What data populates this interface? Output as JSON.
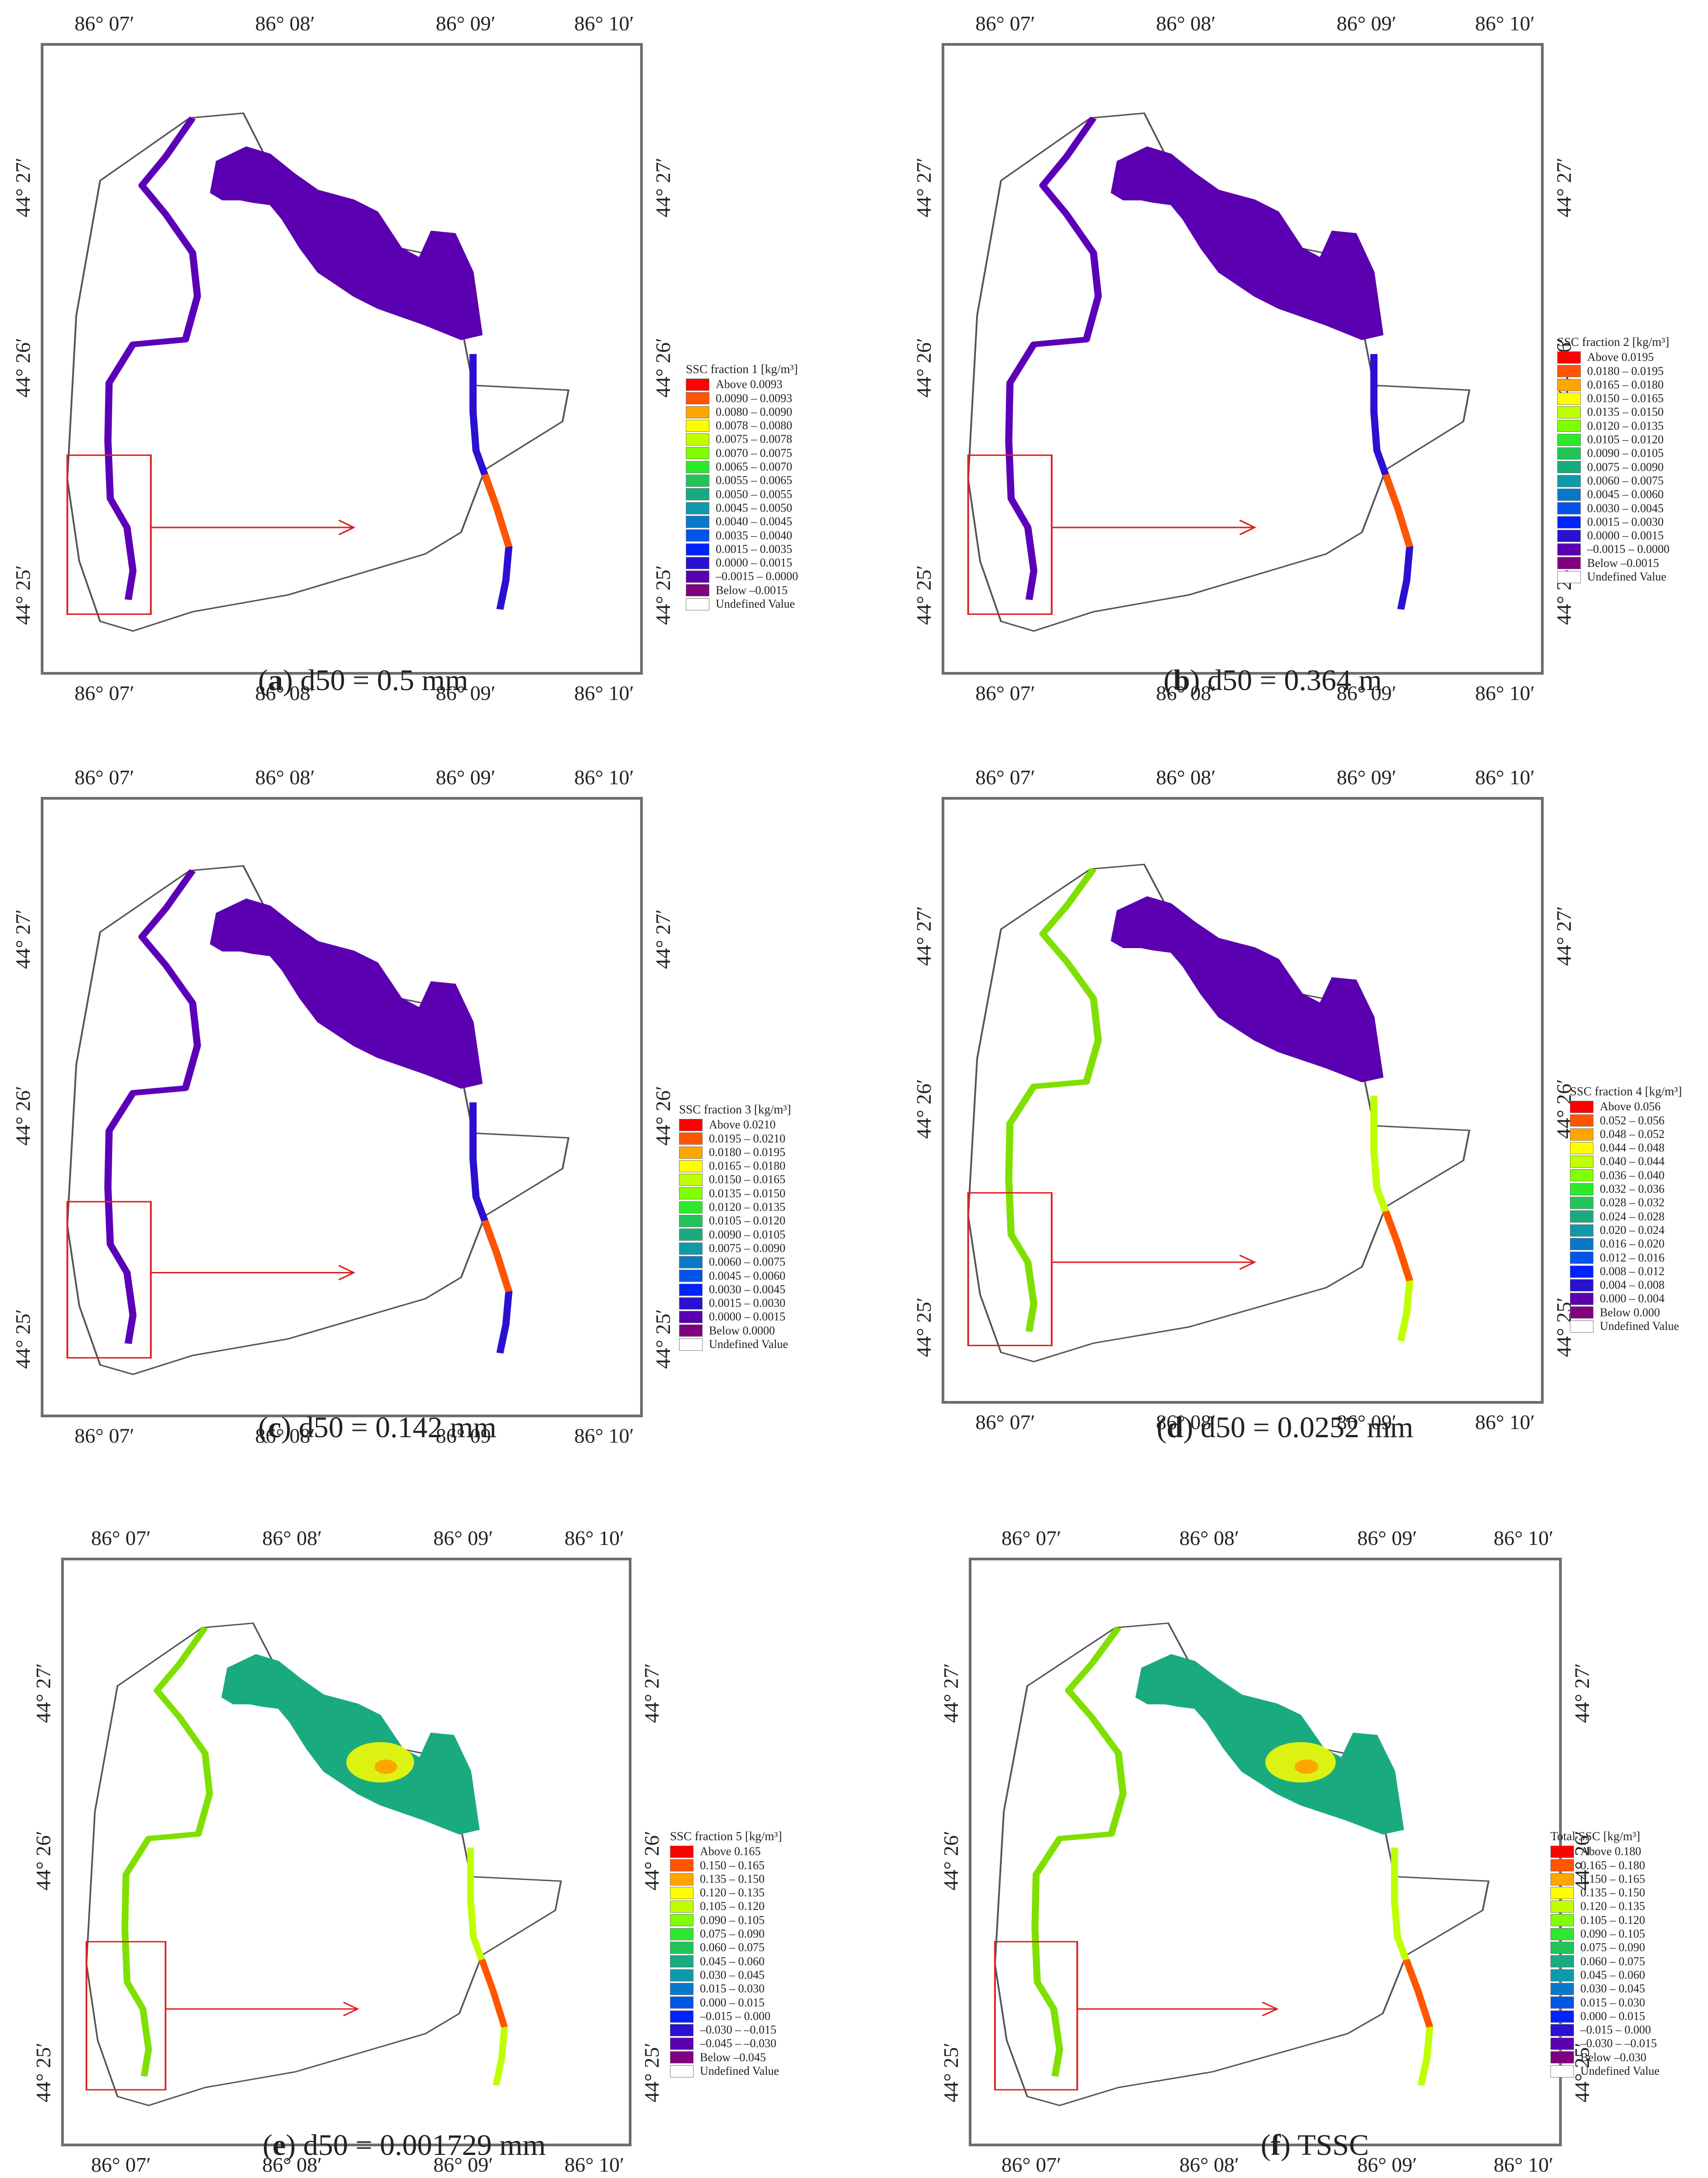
{
  "lon_labels": [
    "86° 07′",
    "86° 08′",
    "86° 09′",
    "86° 10′"
  ],
  "lat_labels": [
    "44° 25′",
    "44° 26′",
    "44° 27′"
  ],
  "undefined_label": "Undefined Value",
  "colors": {
    "boundary": "#555555",
    "highlight_box": "#e02020",
    "river_low": "#5b00b8",
    "lake_low": "#5a00b0"
  },
  "panels": [
    {
      "letter": "a",
      "caption": ") d50 = 0.5 mm",
      "legend_title": "SSC fraction 1 [kg/m³]",
      "legend": [
        {
          "label": "Above     0.0093",
          "color": "#ff0000"
        },
        {
          "label": "0.0090  –  0.0093",
          "color": "#ff5500"
        },
        {
          "label": "0.0080  –  0.0090",
          "color": "#ffa500"
        },
        {
          "label": "0.0078  –  0.0080",
          "color": "#ffff00"
        },
        {
          "label": "0.0075  –  0.0078",
          "color": "#bfff00"
        },
        {
          "label": "0.0070  –  0.0075",
          "color": "#80ff00"
        },
        {
          "label": "0.0065  –  0.0070",
          "color": "#2ee82e"
        },
        {
          "label": "0.0055  –  0.0065",
          "color": "#22c45a"
        },
        {
          "label": "0.0050  –  0.0055",
          "color": "#1aaa80"
        },
        {
          "label": "0.0045  –  0.0050",
          "color": "#0f9aaa"
        },
        {
          "label": "0.0040  –  0.0045",
          "color": "#0a78c8"
        },
        {
          "label": "0.0035  –  0.0040",
          "color": "#0055e8"
        },
        {
          "label": "0.0015  –  0.0035",
          "color": "#0022ff"
        },
        {
          "label": "0.0000  –  0.0015",
          "color": "#2a10d0"
        },
        {
          "label": "–0.0015  –  0.0000",
          "color": "#5a00b0"
        },
        {
          "label": "Below    –0.0015",
          "color": "#800080"
        }
      ]
    },
    {
      "letter": "b",
      "caption": ") d50 = 0.364 m",
      "legend_title": "SSC fraction 2 [kg/m³]",
      "legend": [
        {
          "label": "Above     0.0195",
          "color": "#ff0000"
        },
        {
          "label": "0.0180  –  0.0195",
          "color": "#ff5500"
        },
        {
          "label": "0.0165  –  0.0180",
          "color": "#ffa500"
        },
        {
          "label": "0.0150  –  0.0165",
          "color": "#ffff00"
        },
        {
          "label": "0.0135  –  0.0150",
          "color": "#bfff00"
        },
        {
          "label": "0.0120  –  0.0135",
          "color": "#80ff00"
        },
        {
          "label": "0.0105  –  0.0120",
          "color": "#2ee82e"
        },
        {
          "label": "0.0090  –  0.0105",
          "color": "#22c45a"
        },
        {
          "label": "0.0075  –  0.0090",
          "color": "#1aaa80"
        },
        {
          "label": "0.0060  –  0.0075",
          "color": "#0f9aaa"
        },
        {
          "label": "0.0045  –  0.0060",
          "color": "#0a78c8"
        },
        {
          "label": "0.0030  –  0.0045",
          "color": "#0055e8"
        },
        {
          "label": "0.0015  –  0.0030",
          "color": "#0022ff"
        },
        {
          "label": "0.0000  –  0.0015",
          "color": "#2a10d0"
        },
        {
          "label": "–0.0015  –  0.0000",
          "color": "#5a00b0"
        },
        {
          "label": "Below    –0.0015",
          "color": "#800080"
        }
      ]
    },
    {
      "letter": "c",
      "caption": ") d50 = 0.142 mm",
      "legend_title": "SSC fraction 3 [kg/m³]",
      "legend": [
        {
          "label": "Above   0.0210",
          "color": "#ff0000"
        },
        {
          "label": "0.0195 – 0.0210",
          "color": "#ff5500"
        },
        {
          "label": "0.0180 – 0.0195",
          "color": "#ffa500"
        },
        {
          "label": "0.0165 – 0.0180",
          "color": "#ffff00"
        },
        {
          "label": "0.0150 – 0.0165",
          "color": "#bfff00"
        },
        {
          "label": "0.0135 – 0.0150",
          "color": "#80ff00"
        },
        {
          "label": "0.0120 – 0.0135",
          "color": "#2ee82e"
        },
        {
          "label": "0.0105 – 0.0120",
          "color": "#22c45a"
        },
        {
          "label": "0.0090 – 0.0105",
          "color": "#1aaa80"
        },
        {
          "label": "0.0075 – 0.0090",
          "color": "#0f9aaa"
        },
        {
          "label": "0.0060 – 0.0075",
          "color": "#0a78c8"
        },
        {
          "label": "0.0045 – 0.0060",
          "color": "#0055e8"
        },
        {
          "label": "0.0030 – 0.0045",
          "color": "#0022ff"
        },
        {
          "label": "0.0015 – 0.0030",
          "color": "#2a10d0"
        },
        {
          "label": "0.0000 – 0.0015",
          "color": "#5a00b0"
        },
        {
          "label": "Below   0.0000",
          "color": "#800080"
        }
      ]
    },
    {
      "letter": "d",
      "caption": ") d50 = 0.0252 mm",
      "legend_title": "SSC fraction 4 [kg/m³]",
      "legend": [
        {
          "label": "Above 0.056",
          "color": "#ff0000"
        },
        {
          "label": "0.052 – 0.056",
          "color": "#ff5500"
        },
        {
          "label": "0.048 – 0.052",
          "color": "#ffa500"
        },
        {
          "label": "0.044 – 0.048",
          "color": "#ffff00"
        },
        {
          "label": "0.040 – 0.044",
          "color": "#bfff00"
        },
        {
          "label": "0.036 – 0.040",
          "color": "#80ff00"
        },
        {
          "label": "0.032 – 0.036",
          "color": "#2ee82e"
        },
        {
          "label": "0.028 – 0.032",
          "color": "#22c45a"
        },
        {
          "label": "0.024 – 0.028",
          "color": "#1aaa80"
        },
        {
          "label": "0.020 – 0.024",
          "color": "#0f9aaa"
        },
        {
          "label": "0.016 – 0.020",
          "color": "#0a78c8"
        },
        {
          "label": "0.012 – 0.016",
          "color": "#0055e8"
        },
        {
          "label": "0.008 – 0.012",
          "color": "#0022ff"
        },
        {
          "label": "0.004 – 0.008",
          "color": "#2a10d0"
        },
        {
          "label": "0.000 – 0.004",
          "color": "#5a00b0"
        },
        {
          "label": "Below  0.000",
          "color": "#800080"
        }
      ]
    },
    {
      "letter": "e",
      "caption": ") d50 = 0.001729 mm",
      "legend_title": "SSC fraction 5 [kg/m³]",
      "legend": [
        {
          "label": "Above   0.165",
          "color": "#ff0000"
        },
        {
          "label": "0.150 – 0.165",
          "color": "#ff5500"
        },
        {
          "label": "0.135 – 0.150",
          "color": "#ffa500"
        },
        {
          "label": "0.120 – 0.135",
          "color": "#ffff00"
        },
        {
          "label": "0.105 – 0.120",
          "color": "#bfff00"
        },
        {
          "label": "0.090 – 0.105",
          "color": "#80ff00"
        },
        {
          "label": "0.075 – 0.090",
          "color": "#2ee82e"
        },
        {
          "label": "0.060 – 0.075",
          "color": "#22c45a"
        },
        {
          "label": "0.045 – 0.060",
          "color": "#1aaa80"
        },
        {
          "label": "0.030 – 0.045",
          "color": "#0f9aaa"
        },
        {
          "label": "0.015 – 0.030",
          "color": "#0a78c8"
        },
        {
          "label": "0.000 – 0.015",
          "color": "#0055e8"
        },
        {
          "label": "–0.015 – 0.000",
          "color": "#0022ff"
        },
        {
          "label": "–0.030 – –0.015",
          "color": "#2a10d0"
        },
        {
          "label": "–0.045 – –0.030",
          "color": "#5a00b0"
        },
        {
          "label": "Below –0.045",
          "color": "#800080"
        }
      ]
    },
    {
      "letter": "f",
      "caption": ") TSSC",
      "legend_title": "Total SSC [kg/m³]",
      "legend": [
        {
          "label": "Above   0.180",
          "color": "#ff0000"
        },
        {
          "label": "0.165 – 0.180",
          "color": "#ff5500"
        },
        {
          "label": "0.150 – 0.165",
          "color": "#ffa500"
        },
        {
          "label": "0.135 – 0.150",
          "color": "#ffff00"
        },
        {
          "label": "0.120 – 0.135",
          "color": "#bfff00"
        },
        {
          "label": "0.105 – 0.120",
          "color": "#80ff00"
        },
        {
          "label": "0.090 – 0.105",
          "color": "#2ee82e"
        },
        {
          "label": "0.075 – 0.090",
          "color": "#22c45a"
        },
        {
          "label": "0.060 – 0.075",
          "color": "#1aaa80"
        },
        {
          "label": "0.045 – 0.060",
          "color": "#0f9aaa"
        },
        {
          "label": "0.030 – 0.045",
          "color": "#0a78c8"
        },
        {
          "label": "0.015 – 0.030",
          "color": "#0055e8"
        },
        {
          "label": "0.000 – 0.015",
          "color": "#0022ff"
        },
        {
          "label": "–0.015 – 0.000",
          "color": "#2a10d0"
        },
        {
          "label": "–0.030 – –0.015",
          "color": "#5a00b0"
        },
        {
          "label": "Below –0.030",
          "color": "#800080"
        }
      ]
    }
  ]
}
